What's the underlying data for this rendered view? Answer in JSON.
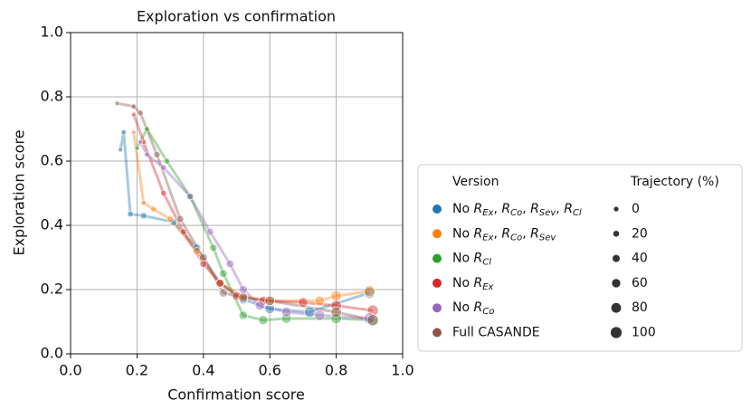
{
  "chart_data": {
    "type": "scatter-line",
    "title": "Exploration vs confirmation",
    "x_label": "Confirmation score",
    "y_label": "Exploration score",
    "xlim": [
      0,
      1
    ],
    "ylim": [
      0,
      1
    ],
    "xticks": [
      {
        "value": 0,
        "label": "0.0"
      },
      0.2,
      0.4,
      0.6,
      0.8,
      {
        "value": 1,
        "label": "1.0"
      }
    ],
    "yticks": [
      {
        "value": 0,
        "label": "0.0"
      },
      0.2,
      0.4,
      0.6,
      0.8,
      {
        "value": 1,
        "label": "1.0"
      }
    ],
    "grid": true,
    "legend_title": "Version",
    "size_legend_title": "Trajectory (%)",
    "size_legend": [
      0,
      20,
      40,
      60,
      80,
      100
    ],
    "series": [
      {
        "name": "No REx, RCo, RSev, RCl",
        "color": "#1f77b4",
        "x": [
          0.15,
          0.16,
          0.18,
          0.22,
          0.31,
          0.38,
          0.45,
          0.52,
          0.6,
          0.72,
          0.9
        ],
        "y": [
          0.635,
          0.69,
          0.435,
          0.43,
          0.41,
          0.33,
          0.22,
          0.17,
          0.14,
          0.13,
          0.19
        ],
        "size": [
          0,
          10,
          20,
          30,
          40,
          50,
          60,
          70,
          80,
          90,
          100
        ]
      },
      {
        "name": "No REx, RCo, RSev",
        "color": "#ff7f0e",
        "x": [
          0.19,
          0.22,
          0.25,
          0.3,
          0.38,
          0.45,
          0.52,
          0.6,
          0.75,
          0.8,
          0.9
        ],
        "y": [
          0.69,
          0.47,
          0.45,
          0.42,
          0.32,
          0.22,
          0.18,
          0.165,
          0.165,
          0.18,
          0.195
        ],
        "size": [
          0,
          10,
          20,
          30,
          40,
          50,
          60,
          70,
          80,
          90,
          100
        ]
      },
      {
        "name": "No RCl",
        "color": "#2ca02c",
        "x": [
          0.2,
          0.23,
          0.29,
          0.36,
          0.43,
          0.46,
          0.52,
          0.58,
          0.65,
          0.8,
          0.91
        ],
        "y": [
          0.64,
          0.7,
          0.6,
          0.49,
          0.33,
          0.25,
          0.12,
          0.105,
          0.11,
          0.11,
          0.105
        ],
        "size": [
          0,
          10,
          20,
          30,
          40,
          50,
          60,
          70,
          80,
          90,
          100
        ]
      },
      {
        "name": "No REx",
        "color": "#d62728",
        "x": [
          0.19,
          0.22,
          0.28,
          0.34,
          0.4,
          0.45,
          0.5,
          0.58,
          0.7,
          0.8,
          0.91
        ],
        "y": [
          0.745,
          0.66,
          0.5,
          0.38,
          0.28,
          0.22,
          0.18,
          0.165,
          0.16,
          0.15,
          0.135
        ],
        "size": [
          0,
          10,
          20,
          30,
          40,
          50,
          60,
          70,
          80,
          90,
          100
        ]
      },
      {
        "name": "No RCo",
        "color": "#9467bd",
        "x": [
          0.21,
          0.23,
          0.28,
          0.36,
          0.42,
          0.48,
          0.52,
          0.57,
          0.65,
          0.75,
          0.9
        ],
        "y": [
          0.66,
          0.62,
          0.58,
          0.49,
          0.38,
          0.28,
          0.2,
          0.15,
          0.13,
          0.12,
          0.11
        ],
        "size": [
          0,
          10,
          20,
          30,
          40,
          50,
          60,
          70,
          80,
          90,
          100
        ]
      },
      {
        "name": "Full CASANDE",
        "color": "#8c564b",
        "x": [
          0.14,
          0.19,
          0.21,
          0.26,
          0.33,
          0.4,
          0.46,
          0.52,
          0.6,
          0.8,
          0.91
        ],
        "y": [
          0.78,
          0.77,
          0.75,
          0.62,
          0.42,
          0.3,
          0.19,
          0.175,
          0.165,
          0.13,
          0.105
        ],
        "size": [
          0,
          10,
          20,
          30,
          40,
          50,
          60,
          70,
          80,
          90,
          100
        ]
      }
    ]
  }
}
